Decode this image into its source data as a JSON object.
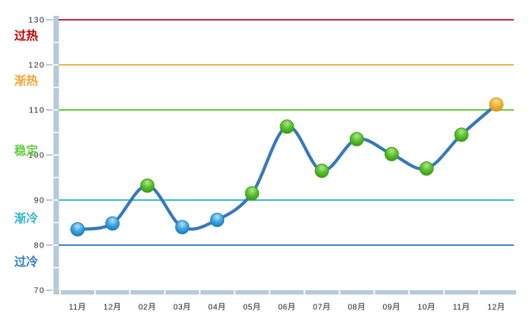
{
  "chart_data": {
    "type": "line",
    "title": "",
    "categories": [
      "11月",
      "12月",
      "02月",
      "03月",
      "04月",
      "05月",
      "06月",
      "07月",
      "08月",
      "09月",
      "10月",
      "11月",
      "12月"
    ],
    "values": [
      83.5,
      84.8,
      93.2,
      84.0,
      85.6,
      91.5,
      106.3,
      96.5,
      103.5,
      100.2,
      97.0,
      104.5,
      111.2
    ],
    "point_colors": [
      "blue",
      "blue",
      "green",
      "blue",
      "blue",
      "green",
      "green",
      "green",
      "green",
      "green",
      "green",
      "green",
      "orange"
    ],
    "ylim": [
      70,
      130
    ],
    "yticks": [
      130,
      120,
      110,
      100,
      90,
      80,
      70
    ],
    "minor_tick_step": 5,
    "xlabel": "",
    "ylabel": "",
    "legend": "none",
    "grid": "off",
    "zones": [
      {
        "label": "过热",
        "label_color": "#C00000",
        "line_value": 130,
        "line_color": "#C4303B",
        "label_at_value": 126.5
      },
      {
        "label": "渐热",
        "label_color": "#F2A73B",
        "line_value": 120,
        "line_color": "#F2B45C",
        "label_at_value": 116.5
      },
      {
        "label": "稳定",
        "label_color": "#66CC44",
        "line_value": 110,
        "line_color": "#72CC46",
        "label_at_value": 101
      },
      {
        "label": "渐冷",
        "label_color": "#33B5CF",
        "line_value": 90,
        "line_color": "#3FBECB",
        "label_at_value": 86
      },
      {
        "label": "过冷",
        "label_color": "#2F7EC6",
        "line_value": 80,
        "line_color": "#4189C7",
        "label_at_value": 76.3
      }
    ],
    "line_color": "#3678BC",
    "axis_color": "#B6C9D8",
    "tick_label_color": "#222222",
    "marker_colors": {
      "blue": {
        "light": "#B3E2F8",
        "mid": "#45A7E0",
        "dark": "#1372B5",
        "edge": "#1B7FC0"
      },
      "green": {
        "light": "#B4E58A",
        "mid": "#5CC231",
        "dark": "#2F9110",
        "edge": "#3FA01B"
      },
      "orange": {
        "light": "#FFE194",
        "mid": "#F4B43A",
        "dark": "#CE8E10",
        "edge": "#D89A1E"
      }
    }
  }
}
